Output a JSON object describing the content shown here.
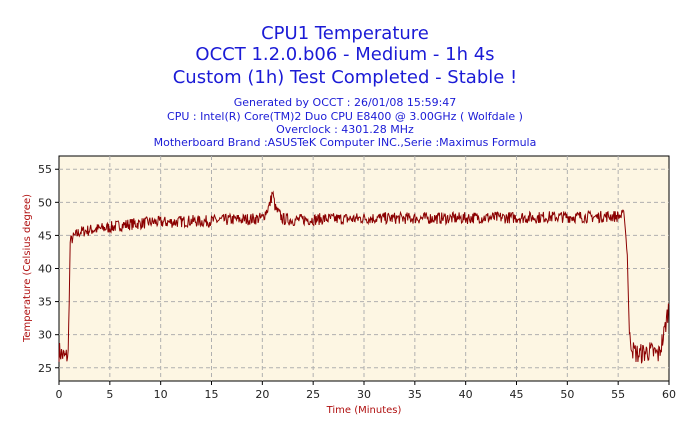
{
  "chart_data": {
    "type": "line",
    "title_lines": [
      "CPU1 Temperature",
      "OCCT 1.2.0.b06 - Medium - 1h 4s",
      "Custom (1h) Test Completed - Stable !"
    ],
    "info_lines": [
      "Generated by OCCT : 26/01/08 15:59:47",
      "CPU : Intel(R) Core(TM)2 Duo CPU E8400 @ 3.00GHz ( Wolfdale )",
      "Overclock : 4301.28 MHz",
      "Motherboard Brand :ASUSTeK Computer INC.,Serie :Maximus Formula"
    ],
    "xlabel": "Time (Minutes)",
    "ylabel": "Temperature (Celsius degree)",
    "xlim": [
      0,
      60
    ],
    "ylim": [
      23,
      57
    ],
    "x_ticks": [
      0,
      5,
      10,
      15,
      20,
      25,
      30,
      35,
      40,
      45,
      50,
      55,
      60
    ],
    "y_ticks": [
      25,
      30,
      35,
      40,
      45,
      50,
      55
    ],
    "grid": true,
    "colors": {
      "title": "#1b1bd6",
      "line": "#8b0000",
      "plot_background": "#fdf6e3",
      "grid": "#b0b0b0",
      "axis_label": "#b01010"
    },
    "series": [
      {
        "points": [
          [
            0,
            27.5
          ],
          [
            0.3,
            27
          ],
          [
            0.6,
            26.5
          ],
          [
            0.9,
            27
          ],
          [
            1.0,
            35
          ],
          [
            1.1,
            44
          ],
          [
            1.3,
            44.5
          ],
          [
            2,
            45.5
          ],
          [
            3,
            45.8
          ],
          [
            4,
            46
          ],
          [
            5,
            46.2
          ],
          [
            6,
            46.5
          ],
          [
            7,
            46.7
          ],
          [
            8,
            46.8
          ],
          [
            9,
            47
          ],
          [
            10,
            47
          ],
          [
            11,
            47
          ],
          [
            12,
            47.1
          ],
          [
            13,
            47.2
          ],
          [
            14,
            47.1
          ],
          [
            15,
            47.2
          ],
          [
            16,
            47.3
          ],
          [
            17,
            47.4
          ],
          [
            18,
            47.4
          ],
          [
            19,
            47.5
          ],
          [
            20,
            47.6
          ],
          [
            20.7,
            49.5
          ],
          [
            21,
            51.5
          ],
          [
            21.3,
            49
          ],
          [
            22,
            47.5
          ],
          [
            23,
            47.3
          ],
          [
            24,
            47.4
          ],
          [
            25,
            47.4
          ],
          [
            26,
            47.5
          ],
          [
            27,
            47.5
          ],
          [
            28,
            47.5
          ],
          [
            29,
            47.5
          ],
          [
            30,
            47.6
          ],
          [
            31,
            47.6
          ],
          [
            32,
            47.6
          ],
          [
            33,
            47.6
          ],
          [
            34,
            47.6
          ],
          [
            35,
            47.6
          ],
          [
            36,
            47.6
          ],
          [
            37,
            47.6
          ],
          [
            38,
            47.6
          ],
          [
            39,
            47.6
          ],
          [
            40,
            47.6
          ],
          [
            41,
            47.7
          ],
          [
            42,
            47.7
          ],
          [
            43,
            47.7
          ],
          [
            44,
            47.7
          ],
          [
            45,
            47.7
          ],
          [
            46,
            47.7
          ],
          [
            47,
            47.7
          ],
          [
            48,
            47.8
          ],
          [
            49,
            47.8
          ],
          [
            50,
            47.8
          ],
          [
            51,
            47.8
          ],
          [
            52,
            47.8
          ],
          [
            53,
            47.8
          ],
          [
            54,
            47.9
          ],
          [
            55,
            47.9
          ],
          [
            55.6,
            48
          ],
          [
            55.9,
            42
          ],
          [
            56.1,
            30
          ],
          [
            56.5,
            27.5
          ],
          [
            57,
            27
          ],
          [
            58,
            27.5
          ],
          [
            59,
            27
          ],
          [
            59.5,
            30
          ],
          [
            60,
            34.5
          ]
        ]
      }
    ]
  }
}
